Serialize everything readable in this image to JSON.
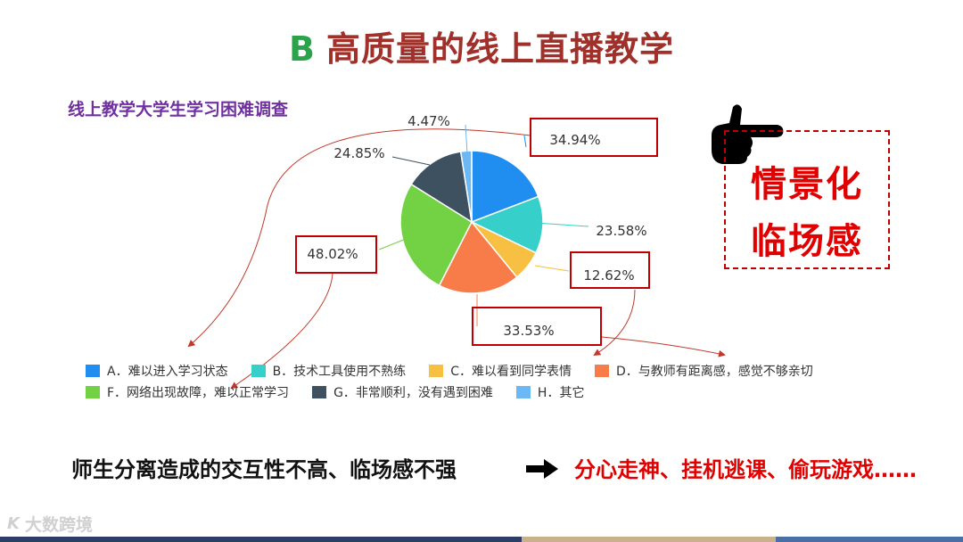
{
  "slide": {
    "title_prefix": "B",
    "title": "高质量的线上直播教学",
    "survey_title": "线上教学大学生学习困难调查",
    "callout": {
      "line1": "情景化",
      "line2": "临场感"
    },
    "bottom": {
      "left_text": "师生分离造成的交互性不高、临场感不强",
      "right_text": "分心走神、挂机逃课、偷玩游戏……"
    },
    "watermark": {
      "mark": "K",
      "text": "大数跨境"
    }
  },
  "colors": {
    "title": "#a0312a",
    "title_prefix": "#2aa34a",
    "survey_title": "#7030a0",
    "highlight_red": "#e00000",
    "box_border": "#c00000"
  },
  "chart_data": {
    "type": "pie",
    "title": "线上教学大学生学习困难调查",
    "legend_position": "bottom",
    "slices": [
      {
        "key": "A",
        "label": "A．难以进入学习状态",
        "value": 34.94,
        "value_label": "34.94%",
        "color": "#1f8ef0"
      },
      {
        "key": "B",
        "label": "B．技术工具使用不熟练",
        "value": 23.58,
        "value_label": "23.58%",
        "color": "#36cfc9"
      },
      {
        "key": "C",
        "label": "C．难以看到同学表情",
        "value": 12.62,
        "value_label": "12.62%",
        "color": "#f7c043"
      },
      {
        "key": "D",
        "label": "D．与教师有距离感，感觉不够亲切",
        "value": 33.53,
        "value_label": "33.53%",
        "color": "#f87c49"
      },
      {
        "key": "F",
        "label": "F．网络出现故障，难以正常学习",
        "value": 48.02,
        "value_label": "48.02%",
        "color": "#72d244"
      },
      {
        "key": "G",
        "label": "G．非常顺利，没有遇到困难",
        "value": 24.85,
        "value_label": "24.85%",
        "color": "#3e5160"
      },
      {
        "key": "H",
        "label": "H．其它",
        "value": 4.47,
        "value_label": "4.47%",
        "color": "#6bb8f5"
      }
    ],
    "legend_rows": [
      [
        "A",
        "B",
        "C",
        "D"
      ],
      [
        "F",
        "G",
        "H"
      ]
    ],
    "boxed_labels": [
      "A",
      "C",
      "D",
      "F"
    ]
  }
}
